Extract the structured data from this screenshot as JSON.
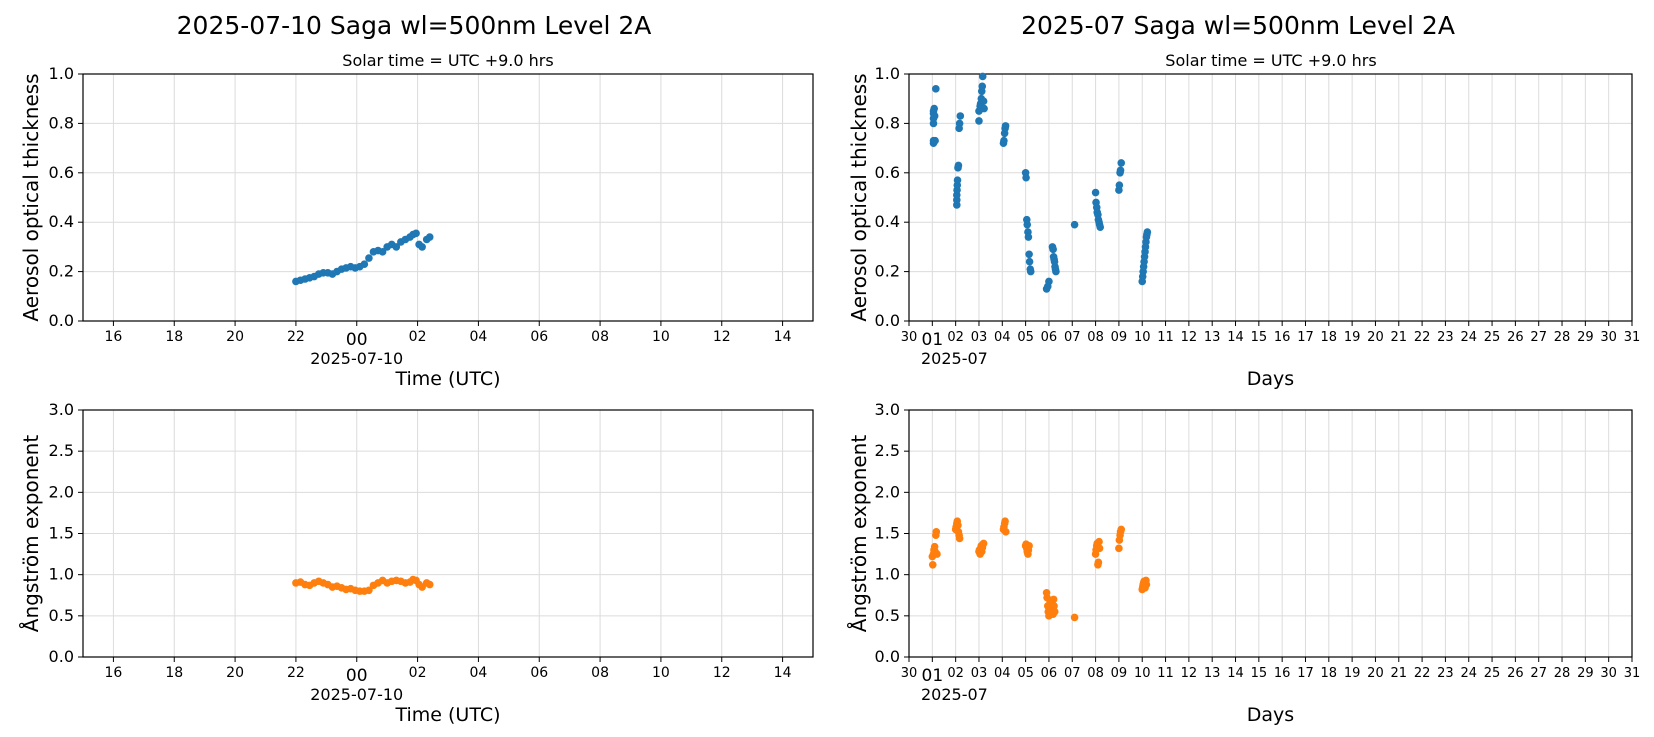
{
  "titles": {
    "left": "2025-07-10  Saga  wl=500nm  Level 2A",
    "right": "2025-07  Saga  wl=500nm  Level 2A",
    "solar_left": "Solar time = UTC +9.0 hrs",
    "solar_right": "Solar time = UTC +9.0 hrs"
  },
  "colors": {
    "aot": "#1f77b4",
    "ang": "#ff7f0e"
  },
  "chart_data": [
    {
      "type": "scatter",
      "name": "aot-daily",
      "ylabel": "Aerosol optical thickness",
      "xlabel": "Time (UTC)",
      "x_offset_label": "2025-07-10",
      "x_unit": "hours relative to 2025-07-10 00:00 UTC",
      "xlim": [
        -9,
        15
      ],
      "ylim": [
        0,
        1.0
      ],
      "yticks": [
        "0.0",
        "0.2",
        "0.4",
        "0.6",
        "0.8",
        "1.0"
      ],
      "xticks": [
        "16",
        "18",
        "20",
        "22",
        "00",
        "02",
        "04",
        "06",
        "08",
        "10",
        "12",
        "14"
      ],
      "points": [
        [
          -2.0,
          0.16
        ],
        [
          -1.85,
          0.165
        ],
        [
          -1.7,
          0.17
        ],
        [
          -1.55,
          0.175
        ],
        [
          -1.4,
          0.18
        ],
        [
          -1.25,
          0.19
        ],
        [
          -1.1,
          0.195
        ],
        [
          -0.95,
          0.195
        ],
        [
          -0.8,
          0.19
        ],
        [
          -0.65,
          0.2
        ],
        [
          -0.5,
          0.21
        ],
        [
          -0.35,
          0.215
        ],
        [
          -0.2,
          0.22
        ],
        [
          -0.05,
          0.215
        ],
        [
          0.1,
          0.22
        ],
        [
          0.25,
          0.23
        ],
        [
          0.4,
          0.255
        ],
        [
          0.55,
          0.28
        ],
        [
          0.7,
          0.285
        ],
        [
          0.85,
          0.28
        ],
        [
          1.0,
          0.3
        ],
        [
          1.15,
          0.31
        ],
        [
          1.3,
          0.3
        ],
        [
          1.45,
          0.32
        ],
        [
          1.6,
          0.33
        ],
        [
          1.75,
          0.34
        ],
        [
          1.85,
          0.35
        ],
        [
          1.95,
          0.355
        ],
        [
          2.05,
          0.31
        ],
        [
          2.15,
          0.3
        ],
        [
          2.3,
          0.33
        ],
        [
          2.4,
          0.34
        ]
      ]
    },
    {
      "type": "scatter",
      "name": "aot-monthly",
      "ylabel": "Aerosol optical thickness",
      "xlabel": "Days",
      "x_offset_label": "2025-07",
      "x_unit": "day of July 2025",
      "xlim": [
        0,
        31
      ],
      "ylim": [
        0,
        1.0
      ],
      "yticks": [
        "0.0",
        "0.2",
        "0.4",
        "0.6",
        "0.8",
        "1.0"
      ],
      "xticks": [
        "30",
        "01",
        "02",
        "03",
        "04",
        "05",
        "06",
        "07",
        "08",
        "09",
        "10",
        "11",
        "12",
        "13",
        "14",
        "15",
        "16",
        "17",
        "18",
        "19",
        "20",
        "21",
        "22",
        "23",
        "24",
        "25",
        "26",
        "27",
        "28",
        "29",
        "30",
        "31"
      ],
      "points": [
        [
          1.05,
          0.72
        ],
        [
          1.05,
          0.73
        ],
        [
          1.05,
          0.8
        ],
        [
          1.05,
          0.82
        ],
        [
          1.05,
          0.84
        ],
        [
          1.05,
          0.85
        ],
        [
          1.08,
          0.86
        ],
        [
          1.1,
          0.83
        ],
        [
          1.12,
          0.73
        ],
        [
          1.15,
          0.94
        ],
        [
          2.05,
          0.47
        ],
        [
          2.05,
          0.49
        ],
        [
          2.05,
          0.51
        ],
        [
          2.06,
          0.53
        ],
        [
          2.07,
          0.55
        ],
        [
          2.08,
          0.57
        ],
        [
          2.1,
          0.62
        ],
        [
          2.12,
          0.63
        ],
        [
          2.15,
          0.78
        ],
        [
          2.17,
          0.8
        ],
        [
          2.2,
          0.83
        ],
        [
          3.0,
          0.81
        ],
        [
          3.0,
          0.85
        ],
        [
          3.05,
          0.87
        ],
        [
          3.07,
          0.88
        ],
        [
          3.1,
          0.9
        ],
        [
          3.12,
          0.93
        ],
        [
          3.14,
          0.95
        ],
        [
          3.16,
          0.99
        ],
        [
          3.2,
          0.89
        ],
        [
          3.22,
          0.86
        ],
        [
          4.05,
          0.72
        ],
        [
          4.07,
          0.73
        ],
        [
          4.1,
          0.76
        ],
        [
          4.12,
          0.78
        ],
        [
          4.14,
          0.79
        ],
        [
          5.0,
          0.6
        ],
        [
          5.02,
          0.58
        ],
        [
          5.05,
          0.41
        ],
        [
          5.07,
          0.39
        ],
        [
          5.1,
          0.36
        ],
        [
          5.12,
          0.34
        ],
        [
          5.15,
          0.27
        ],
        [
          5.17,
          0.24
        ],
        [
          5.2,
          0.21
        ],
        [
          5.22,
          0.2
        ],
        [
          5.9,
          0.13
        ],
        [
          5.95,
          0.14
        ],
        [
          6.0,
          0.16
        ],
        [
          6.15,
          0.3
        ],
        [
          6.18,
          0.29
        ],
        [
          6.2,
          0.26
        ],
        [
          6.22,
          0.25
        ],
        [
          6.24,
          0.24
        ],
        [
          6.26,
          0.22
        ],
        [
          6.28,
          0.21
        ],
        [
          6.3,
          0.2
        ],
        [
          7.1,
          0.39
        ],
        [
          8.0,
          0.52
        ],
        [
          8.02,
          0.48
        ],
        [
          8.05,
          0.46
        ],
        [
          8.07,
          0.44
        ],
        [
          8.1,
          0.43
        ],
        [
          8.12,
          0.41
        ],
        [
          8.15,
          0.4
        ],
        [
          8.17,
          0.39
        ],
        [
          8.2,
          0.38
        ],
        [
          9.0,
          0.53
        ],
        [
          9.02,
          0.55
        ],
        [
          9.05,
          0.6
        ],
        [
          9.07,
          0.61
        ],
        [
          9.1,
          0.64
        ],
        [
          10.0,
          0.16
        ],
        [
          10.02,
          0.18
        ],
        [
          10.04,
          0.2
        ],
        [
          10.06,
          0.22
        ],
        [
          10.08,
          0.24
        ],
        [
          10.1,
          0.26
        ],
        [
          10.12,
          0.28
        ],
        [
          10.14,
          0.3
        ],
        [
          10.16,
          0.32
        ],
        [
          10.18,
          0.34
        ],
        [
          10.2,
          0.35
        ],
        [
          10.22,
          0.36
        ]
      ]
    },
    {
      "type": "scatter",
      "name": "ang-daily",
      "ylabel": "Ångström exponent",
      "xlabel": "Time (UTC)",
      "x_offset_label": "2025-07-10",
      "x_unit": "hours relative to 2025-07-10 00:00 UTC",
      "xlim": [
        -9,
        15
      ],
      "ylim": [
        0,
        3.0
      ],
      "yticks": [
        "0.0",
        "0.5",
        "1.0",
        "1.5",
        "2.0",
        "2.5",
        "3.0"
      ],
      "xticks": [
        "16",
        "18",
        "20",
        "22",
        "00",
        "02",
        "04",
        "06",
        "08",
        "10",
        "12",
        "14"
      ],
      "points": [
        [
          -2.0,
          0.9
        ],
        [
          -1.85,
          0.91
        ],
        [
          -1.7,
          0.88
        ],
        [
          -1.55,
          0.87
        ],
        [
          -1.4,
          0.9
        ],
        [
          -1.25,
          0.92
        ],
        [
          -1.1,
          0.9
        ],
        [
          -0.95,
          0.88
        ],
        [
          -0.8,
          0.85
        ],
        [
          -0.65,
          0.86
        ],
        [
          -0.5,
          0.84
        ],
        [
          -0.35,
          0.82
        ],
        [
          -0.2,
          0.83
        ],
        [
          -0.05,
          0.81
        ],
        [
          0.1,
          0.8
        ],
        [
          0.25,
          0.8
        ],
        [
          0.4,
          0.81
        ],
        [
          0.55,
          0.87
        ],
        [
          0.7,
          0.9
        ],
        [
          0.85,
          0.93
        ],
        [
          1.0,
          0.9
        ],
        [
          1.15,
          0.92
        ],
        [
          1.3,
          0.93
        ],
        [
          1.45,
          0.92
        ],
        [
          1.6,
          0.9
        ],
        [
          1.75,
          0.91
        ],
        [
          1.85,
          0.94
        ],
        [
          1.95,
          0.93
        ],
        [
          2.05,
          0.88
        ],
        [
          2.15,
          0.85
        ],
        [
          2.3,
          0.9
        ],
        [
          2.4,
          0.88
        ]
      ]
    },
    {
      "type": "scatter",
      "name": "ang-monthly",
      "ylabel": "Ångström exponent",
      "xlabel": "Days",
      "x_offset_label": "2025-07",
      "x_unit": "day of July 2025",
      "xlim": [
        0,
        31
      ],
      "ylim": [
        0,
        3.0
      ],
      "yticks": [
        "0.0",
        "0.5",
        "1.0",
        "1.5",
        "2.0",
        "2.5",
        "3.0"
      ],
      "xticks": [
        "30",
        "01",
        "02",
        "03",
        "04",
        "05",
        "06",
        "07",
        "08",
        "09",
        "10",
        "11",
        "12",
        "13",
        "14",
        "15",
        "16",
        "17",
        "18",
        "19",
        "20",
        "21",
        "22",
        "23",
        "24",
        "25",
        "26",
        "27",
        "28",
        "29",
        "30",
        "31"
      ],
      "points": [
        [
          1.0,
          1.22
        ],
        [
          1.02,
          1.12
        ],
        [
          1.05,
          1.25
        ],
        [
          1.07,
          1.3
        ],
        [
          1.1,
          1.34
        ],
        [
          1.12,
          1.28
        ],
        [
          1.15,
          1.48
        ],
        [
          1.17,
          1.52
        ],
        [
          1.2,
          1.25
        ],
        [
          2.0,
          1.55
        ],
        [
          2.02,
          1.58
        ],
        [
          2.05,
          1.62
        ],
        [
          2.07,
          1.65
        ],
        [
          2.1,
          1.6
        ],
        [
          2.12,
          1.52
        ],
        [
          2.15,
          1.48
        ],
        [
          2.17,
          1.44
        ],
        [
          3.0,
          1.28
        ],
        [
          3.02,
          1.3
        ],
        [
          3.05,
          1.25
        ],
        [
          3.07,
          1.32
        ],
        [
          3.1,
          1.35
        ],
        [
          3.12,
          1.28
        ],
        [
          3.15,
          1.33
        ],
        [
          3.17,
          1.37
        ],
        [
          3.2,
          1.38
        ],
        [
          4.05,
          1.55
        ],
        [
          4.07,
          1.58
        ],
        [
          4.1,
          1.62
        ],
        [
          4.12,
          1.65
        ],
        [
          4.15,
          1.52
        ],
        [
          5.0,
          1.35
        ],
        [
          5.02,
          1.37
        ],
        [
          5.05,
          1.32
        ],
        [
          5.07,
          1.28
        ],
        [
          5.1,
          1.25
        ],
        [
          5.12,
          1.3
        ],
        [
          5.15,
          1.35
        ],
        [
          5.9,
          0.78
        ],
        [
          5.92,
          0.72
        ],
        [
          5.95,
          0.62
        ],
        [
          5.97,
          0.55
        ],
        [
          6.0,
          0.5
        ],
        [
          6.05,
          0.68
        ],
        [
          6.1,
          0.65
        ],
        [
          6.15,
          0.58
        ],
        [
          6.18,
          0.52
        ],
        [
          6.2,
          0.7
        ],
        [
          6.22,
          0.62
        ],
        [
          6.25,
          0.55
        ],
        [
          7.1,
          0.48
        ],
        [
          8.0,
          1.25
        ],
        [
          8.02,
          1.3
        ],
        [
          8.05,
          1.35
        ],
        [
          8.07,
          1.38
        ],
        [
          8.1,
          1.12
        ],
        [
          8.12,
          1.15
        ],
        [
          8.15,
          1.4
        ],
        [
          8.17,
          1.32
        ],
        [
          9.0,
          1.32
        ],
        [
          9.02,
          1.42
        ],
        [
          9.05,
          1.48
        ],
        [
          9.07,
          1.52
        ],
        [
          9.1,
          1.55
        ],
        [
          10.0,
          0.82
        ],
        [
          10.02,
          0.85
        ],
        [
          10.04,
          0.88
        ],
        [
          10.06,
          0.9
        ],
        [
          10.08,
          0.92
        ],
        [
          10.1,
          0.87
        ],
        [
          10.12,
          0.84
        ],
        [
          10.14,
          0.9
        ],
        [
          10.16,
          0.93
        ],
        [
          10.18,
          0.88
        ]
      ]
    }
  ]
}
